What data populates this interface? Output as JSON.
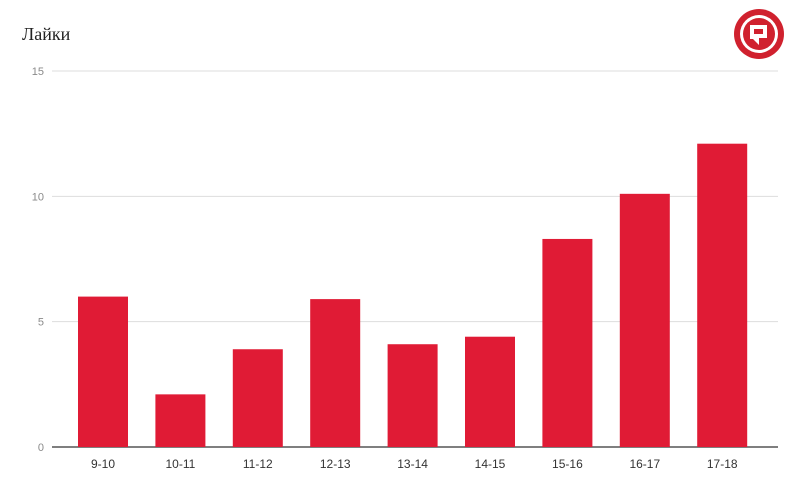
{
  "chart_data": {
    "type": "bar",
    "title": "Лайки",
    "xlabel": "",
    "ylabel": "",
    "categories": [
      "9-10",
      "10-11",
      "11-12",
      "12-13",
      "13-14",
      "14-15",
      "15-16",
      "16-17",
      "17-18"
    ],
    "values": [
      6.0,
      2.1,
      3.9,
      5.9,
      4.1,
      4.4,
      8.3,
      10.1,
      12.1
    ],
    "ylim": [
      0,
      15
    ],
    "yticks": [
      "0",
      "5",
      "10",
      "15"
    ],
    "grid": true,
    "bar_color": "#e01b35"
  },
  "colors": {
    "bar": "#e01b35",
    "grid": "#dddddd",
    "axis": "#333333",
    "logo": "#d0212e"
  },
  "logo": {
    "icon": "brand-logo-icon"
  }
}
